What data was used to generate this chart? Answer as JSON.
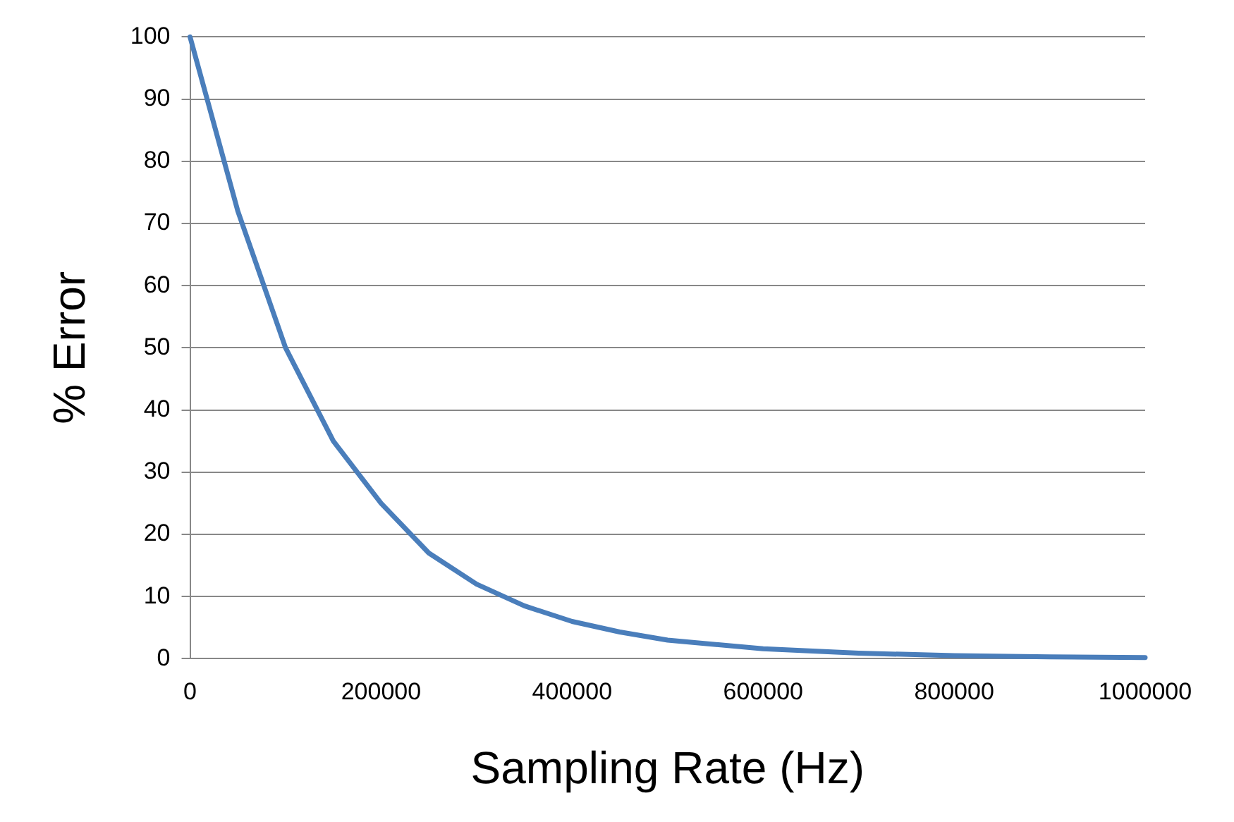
{
  "chart_data": {
    "type": "line",
    "xlabel": "Sampling Rate (Hz)",
    "ylabel": "% Error",
    "x": [
      0,
      50000,
      100000,
      150000,
      200000,
      250000,
      300000,
      350000,
      400000,
      450000,
      500000,
      600000,
      700000,
      800000,
      900000,
      1000000
    ],
    "series": [
      {
        "color": "#4a7ebb",
        "values": [
          100,
          72,
          50,
          35,
          25,
          17,
          12,
          8.5,
          6,
          4.3,
          3,
          1.6,
          0.9,
          0.5,
          0.3,
          0.2
        ]
      }
    ],
    "xlim": [
      0,
      1000000
    ],
    "xticks": [
      0,
      200000,
      400000,
      600000,
      800000,
      1000000
    ],
    "ylim": [
      0,
      100
    ],
    "yticks": [
      0,
      10,
      20,
      30,
      40,
      50,
      60,
      70,
      80,
      90,
      100
    ],
    "grid": "y",
    "legend": false,
    "marker": "none",
    "line_style": "solid"
  }
}
